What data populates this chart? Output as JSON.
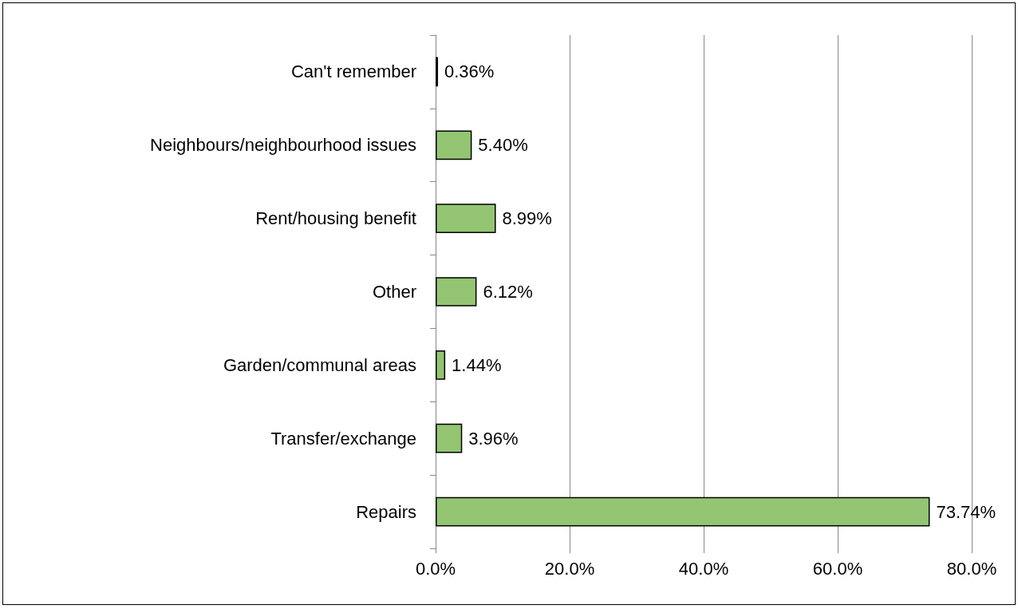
{
  "chart_data": {
    "type": "bar",
    "orientation": "horizontal",
    "categories": [
      "Can't remember",
      "Neighbours/neighbourhood issues",
      "Rent/housing benefit",
      "Other",
      "Garden/communal areas",
      "Transfer/exchange",
      "Repairs"
    ],
    "values": [
      0.36,
      5.4,
      8.99,
      6.12,
      1.44,
      3.96,
      73.74
    ],
    "value_labels": [
      "0.36%",
      "5.40%",
      "8.99%",
      "6.12%",
      "1.44%",
      "3.96%",
      "73.74%"
    ],
    "color": "#93c572",
    "xlim": [
      0,
      80
    ],
    "xticks": [
      {
        "value": 0,
        "label": "0.0%"
      },
      {
        "value": 20,
        "label": "20.0%"
      },
      {
        "value": 40,
        "label": "40.0%"
      },
      {
        "value": 60,
        "label": "60.0%"
      },
      {
        "value": 80,
        "label": "80.0%"
      }
    ],
    "grid": "x"
  }
}
